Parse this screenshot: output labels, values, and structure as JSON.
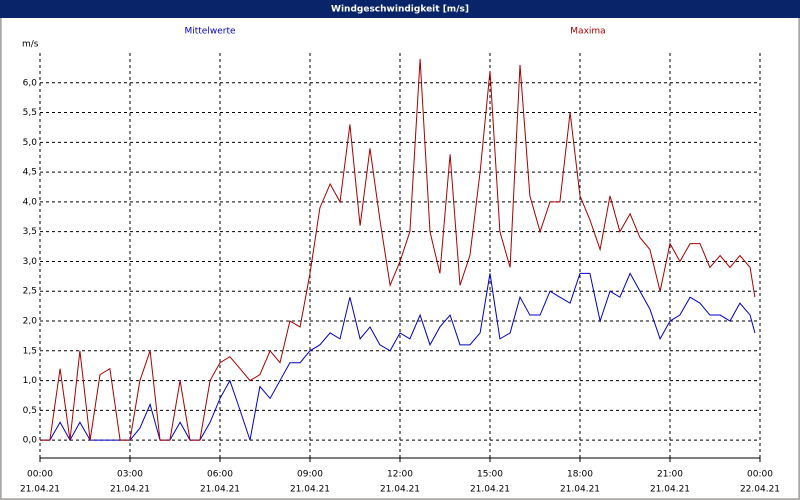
{
  "chart_data": {
    "type": "line",
    "title": "Windgeschwindigkeit [m/s]",
    "y_label": "m/s",
    "xlim": [
      0,
      24
    ],
    "xticks": [
      {
        "value": 0,
        "label": "00:00",
        "date": "21.04.21"
      },
      {
        "value": 3,
        "label": "03:00",
        "date": "21.04.21"
      },
      {
        "value": 6,
        "label": "06:00",
        "date": "21.04.21"
      },
      {
        "value": 9,
        "label": "09:00",
        "date": "21.04.21"
      },
      {
        "value": 12,
        "label": "12:00",
        "date": "21.04.21"
      },
      {
        "value": 15,
        "label": "15:00",
        "date": "21.04.21"
      },
      {
        "value": 18,
        "label": "18:00",
        "date": "21.04.21"
      },
      {
        "value": 21,
        "label": "21:00",
        "date": "21.04.21"
      },
      {
        "value": 24,
        "label": "00:00",
        "date": "22.04.21"
      }
    ],
    "ylim": [
      -0.3,
      6.5
    ],
    "yticks": [
      {
        "value": 0,
        "label": "0,0"
      },
      {
        "value": 0.5,
        "label": "0,5"
      },
      {
        "value": 1,
        "label": "1,0"
      },
      {
        "value": 1.5,
        "label": "1,5"
      },
      {
        "value": 2,
        "label": "2,0"
      },
      {
        "value": 2.5,
        "label": "2,5"
      },
      {
        "value": 3,
        "label": "3,0"
      },
      {
        "value": 3.5,
        "label": "3,5"
      },
      {
        "value": 4,
        "label": "4,0"
      },
      {
        "value": 4.5,
        "label": "4,5"
      },
      {
        "value": 5,
        "label": "5,0"
      },
      {
        "value": 5.5,
        "label": "5,5"
      },
      {
        "value": 6,
        "label": "6,0"
      }
    ],
    "grid": true,
    "x": [
      0,
      0.33,
      0.67,
      1,
      1.33,
      1.67,
      2,
      2.33,
      2.67,
      3,
      3.33,
      3.67,
      4,
      4.33,
      4.67,
      5,
      5.33,
      5.67,
      6,
      6.33,
      6.67,
      7,
      7.33,
      7.67,
      8,
      8.33,
      8.67,
      9,
      9.33,
      9.67,
      10,
      10.33,
      10.67,
      11,
      11.33,
      11.67,
      12,
      12.33,
      12.67,
      13,
      13.33,
      13.67,
      14,
      14.33,
      14.67,
      15,
      15.33,
      15.67,
      16,
      16.33,
      16.67,
      17,
      17.33,
      17.67,
      18,
      18.33,
      18.67,
      19,
      19.33,
      19.67,
      20,
      20.33,
      20.67,
      21,
      21.33,
      21.67,
      22,
      22.33,
      22.67,
      23,
      23.33,
      23.67,
      23.83
    ],
    "series": [
      {
        "name": "Mittelwerte",
        "color": "#0000cc",
        "values": [
          0,
          0,
          0.3,
          0,
          0.3,
          0,
          0,
          0,
          0,
          0,
          0.2,
          0.6,
          0,
          0,
          0.3,
          0,
          0,
          0.3,
          0.7,
          1.0,
          0.5,
          0,
          0.9,
          0.7,
          1.0,
          1.3,
          1.3,
          1.5,
          1.6,
          1.8,
          1.7,
          2.4,
          1.7,
          1.9,
          1.6,
          1.5,
          1.8,
          1.7,
          2.1,
          1.6,
          1.9,
          2.1,
          1.6,
          1.6,
          1.8,
          2.8,
          1.7,
          1.8,
          2.4,
          2.1,
          2.1,
          2.5,
          2.4,
          2.3,
          2.8,
          2.8,
          2.0,
          2.5,
          2.4,
          2.8,
          2.5,
          2.2,
          1.7,
          2.0,
          2.1,
          2.4,
          2.3,
          2.1,
          2.1,
          2.0,
          2.3,
          2.1,
          1.8
        ]
      },
      {
        "name": "Maxima",
        "color": "#aa0000",
        "values": [
          0,
          0,
          1.2,
          0,
          1.5,
          0,
          1.1,
          1.2,
          0,
          0,
          1.0,
          1.5,
          0,
          0,
          1.0,
          0,
          0,
          1.0,
          1.3,
          1.4,
          1.2,
          1.0,
          1.1,
          1.5,
          1.3,
          2.0,
          1.9,
          2.8,
          3.9,
          4.3,
          4.0,
          5.3,
          3.6,
          4.9,
          3.7,
          2.6,
          3.0,
          3.5,
          6.4,
          3.5,
          2.8,
          4.8,
          2.6,
          3.1,
          4.5,
          6.2,
          3.5,
          2.9,
          6.3,
          4.1,
          3.5,
          4.0,
          4.0,
          5.5,
          4.1,
          3.7,
          3.2,
          4.1,
          3.5,
          3.8,
          3.4,
          3.2,
          2.5,
          3.3,
          3.0,
          3.3,
          3.3,
          2.9,
          3.1,
          2.9,
          3.1,
          2.9,
          2.4
        ]
      }
    ]
  }
}
